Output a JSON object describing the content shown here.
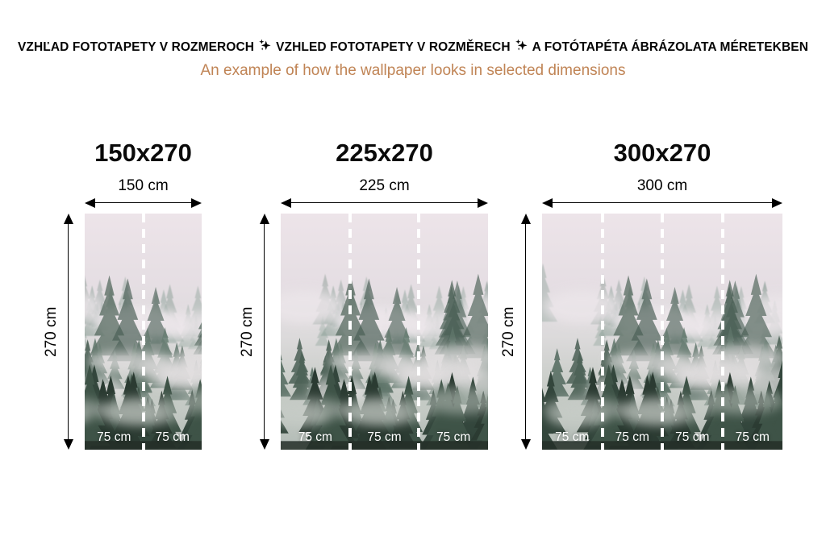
{
  "header": {
    "title_segments": [
      "VZHĽAD FOTOTAPETY V ROZMEROCH",
      "VZHLED FOTOTAPETY V ROZMĚRECH",
      "A FOTÓTAPÉTA ÁBRÁZOLATA MÉRETEKBEN"
    ],
    "separator_icon": "sparkle-icon",
    "subtitle": "An example of how the wallpaper looks in selected dimensions"
  },
  "colors": {
    "title_text": "#050505",
    "subtitle_text": "#c08455",
    "dimension_lines": "#000000",
    "panel_label_text": "#ffffff",
    "divider_dash": "#ffffff"
  },
  "figures": [
    {
      "size_label": "150x270",
      "width_label": "150 cm",
      "height_label": "270 cm",
      "panel_widths": [
        "75 cm",
        "75 cm"
      ],
      "image": "misty-forest-wallpaper"
    },
    {
      "size_label": "225x270",
      "width_label": "225 cm",
      "height_label": "270 cm",
      "panel_widths": [
        "75 cm",
        "75 cm",
        "75 cm"
      ],
      "image": "misty-forest-wallpaper"
    },
    {
      "size_label": "300x270",
      "width_label": "300 cm",
      "height_label": "270 cm",
      "panel_widths": [
        "75 cm",
        "75 cm",
        "75 cm",
        "75 cm"
      ],
      "image": "misty-forest-wallpaper"
    }
  ]
}
